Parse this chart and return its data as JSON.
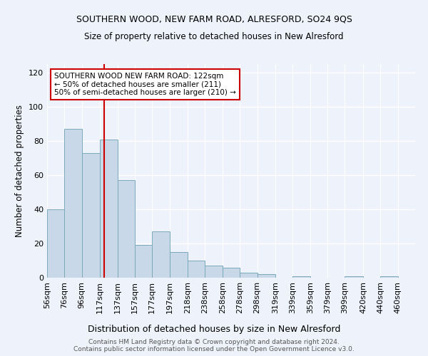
{
  "title1": "SOUTHERN WOOD, NEW FARM ROAD, ALRESFORD, SO24 9QS",
  "title2": "Size of property relative to detached houses in New Alresford",
  "xlabel": "Distribution of detached houses by size in New Alresford",
  "ylabel": "Number of detached properties",
  "categories": [
    "56sqm",
    "76sqm",
    "96sqm",
    "117sqm",
    "137sqm",
    "157sqm",
    "177sqm",
    "197sqm",
    "218sqm",
    "238sqm",
    "258sqm",
    "278sqm",
    "298sqm",
    "319sqm",
    "339sqm",
    "359sqm",
    "379sqm",
    "399sqm",
    "420sqm",
    "440sqm",
    "460sqm"
  ],
  "values": [
    40,
    87,
    73,
    81,
    57,
    19,
    27,
    15,
    10,
    7,
    6,
    3,
    2,
    0,
    1,
    0,
    0,
    1,
    0,
    1,
    0
  ],
  "bar_color": "#c8d8e8",
  "bar_edge_color": "#7aaabb",
  "background_color": "#eef2fa",
  "grid_color": "#ffffff",
  "ylim": [
    0,
    125
  ],
  "yticks": [
    0,
    20,
    40,
    60,
    80,
    100,
    120
  ],
  "property_line_color": "#cc0000",
  "annotation_text": "SOUTHERN WOOD NEW FARM ROAD: 122sqm\n← 50% of detached houses are smaller (211)\n50% of semi-detached houses are larger (210) →",
  "annotation_box_color": "#ffffff",
  "annotation_border_color": "#cc0000",
  "footer1": "Contains HM Land Registry data © Crown copyright and database right 2024.",
  "footer2": "Contains public sector information licensed under the Open Government Licence v3.0.",
  "bin_edges": [
    56,
    76,
    96,
    117,
    137,
    157,
    177,
    197,
    218,
    238,
    258,
    278,
    298,
    319,
    339,
    359,
    379,
    399,
    420,
    440,
    460,
    480
  ]
}
